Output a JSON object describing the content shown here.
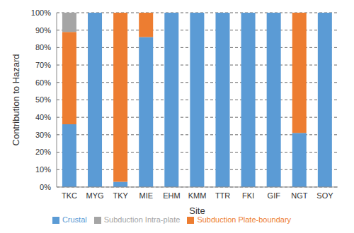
{
  "chart_data": {
    "type": "bar",
    "stacked": true,
    "grid": true,
    "legend": "bottom",
    "x_label": "Site",
    "y_label": "Contribution to Hazard",
    "categories": [
      "TKC",
      "MYG",
      "TKY",
      "MIE",
      "EHM",
      "KMM",
      "TTR",
      "FKI",
      "GIF",
      "NGT",
      "SOY"
    ],
    "series": [
      {
        "name": "Crustal",
        "color": "#5b9bd5",
        "values": [
          36,
          100,
          3,
          86,
          100,
          100,
          100,
          100,
          100,
          31,
          100
        ]
      },
      {
        "name": "Subduction Plate-boundary",
        "color": "#ed7d31",
        "values": [
          53,
          0,
          97,
          14,
          0,
          0,
          0,
          0,
          0,
          69,
          0
        ]
      },
      {
        "name": "Subduction Intra-plate",
        "color": "#a5a5a5",
        "values": [
          11,
          0,
          0,
          0,
          0,
          0,
          0,
          0,
          0,
          0,
          0
        ]
      }
    ],
    "ylim": [
      0,
      100
    ],
    "yticks": [
      {
        "value": 0,
        "label": "0%"
      },
      {
        "value": 10,
        "label": "10%"
      },
      {
        "value": 20,
        "label": "20%"
      },
      {
        "value": 30,
        "label": "30%"
      },
      {
        "value": 40,
        "label": "40%"
      },
      {
        "value": 50,
        "label": "50%"
      },
      {
        "value": 60,
        "label": "60%"
      },
      {
        "value": 70,
        "label": "70%"
      },
      {
        "value": 80,
        "label": "80%"
      },
      {
        "value": 90,
        "label": "90%"
      },
      {
        "value": 100,
        "label": "100%"
      }
    ]
  }
}
